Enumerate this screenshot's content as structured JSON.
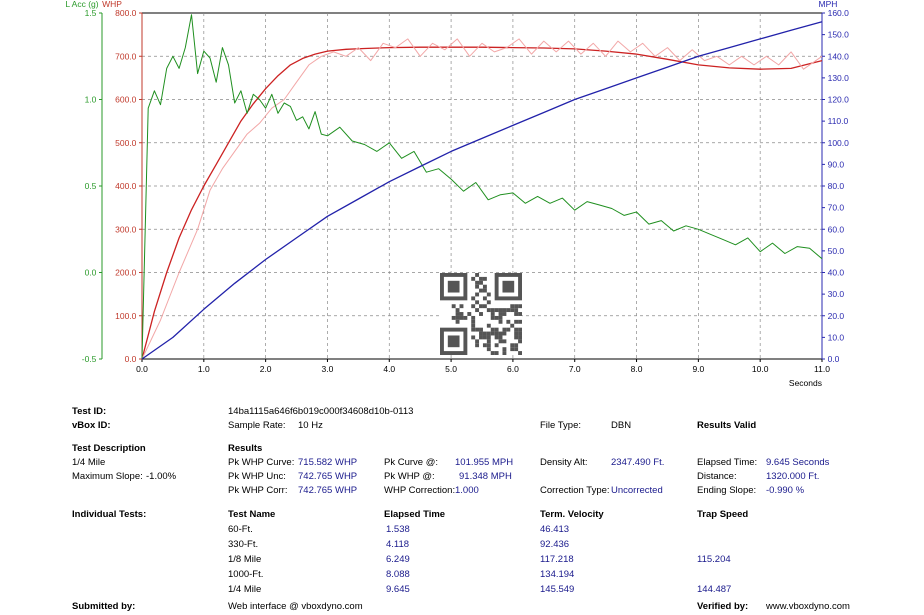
{
  "chart_data": {
    "type": "line",
    "xlabel": "Seconds",
    "xlim": [
      0,
      11
    ],
    "xticks": [
      0,
      1,
      2,
      3,
      4,
      5,
      6,
      7,
      8,
      9,
      10,
      11
    ],
    "xtick_labels": [
      "0.0",
      "1.0",
      "2.0",
      "3.0",
      "4.0",
      "5.0",
      "6.0",
      "7.0",
      "8.0",
      "9.0",
      "10.0",
      "11.0"
    ],
    "axes": {
      "left_outer": {
        "label": "L Acc (g)",
        "color": "#2a9a2a",
        "range": [
          -0.5,
          1.5
        ],
        "ticks": [
          -0.5,
          0.0,
          0.5,
          1.0,
          1.5
        ],
        "tick_labels": [
          "-0.5",
          "0.0",
          "0.5",
          "1.0",
          "1.5"
        ]
      },
      "left_inner": {
        "label": "WHP",
        "color": "#c0392b",
        "range": [
          0,
          800
        ],
        "ticks": [
          0,
          100,
          200,
          300,
          400,
          500,
          600,
          700,
          800
        ],
        "tick_labels": [
          "0.0",
          "100.0",
          "200.0",
          "300.0",
          "400.0",
          "500.0",
          "600.0",
          "700.0",
          "800.0"
        ]
      },
      "right": {
        "label": "MPH",
        "color": "#2a2ab0",
        "range": [
          0,
          160
        ],
        "ticks": [
          0,
          10,
          20,
          30,
          40,
          50,
          60,
          70,
          80,
          90,
          100,
          110,
          120,
          130,
          140,
          150,
          160
        ],
        "tick_labels": [
          "0.0",
          "10.0",
          "20.0",
          "30.0",
          "40.0",
          "50.0",
          "60.0",
          "70.0",
          "80.0",
          "90.0",
          "100.0",
          "110.0",
          "120.0",
          "130.0",
          "140.0",
          "150.0",
          "160.0"
        ]
      }
    },
    "grid": true,
    "series": [
      {
        "axis": "left_inner",
        "color": "#cc2222",
        "width": 1.3,
        "x": [
          0,
          0.2,
          0.4,
          0.6,
          0.8,
          1.0,
          1.2,
          1.4,
          1.6,
          1.8,
          2.0,
          2.2,
          2.4,
          2.6,
          2.8,
          3.0,
          3.3,
          3.6,
          4.0,
          4.5,
          5.0,
          5.5,
          6.0,
          6.5,
          7.0,
          7.5,
          8.0,
          8.5,
          9.0,
          9.5,
          10.0,
          10.5,
          11.0
        ],
        "y": [
          0,
          110,
          200,
          280,
          345,
          400,
          450,
          500,
          550,
          590,
          625,
          655,
          680,
          695,
          705,
          712,
          716,
          718,
          720,
          721,
          721,
          721,
          720,
          719,
          717,
          712,
          705,
          693,
          680,
          673,
          670,
          672,
          690
        ]
      },
      {
        "axis": "left_inner",
        "color": "#f2a7a7",
        "width": 1.0,
        "x": [
          0,
          0.3,
          0.6,
          0.9,
          1.1,
          1.3,
          1.5,
          1.7,
          1.9,
          2.1,
          2.3,
          2.5,
          2.7,
          2.9,
          3.1,
          3.3,
          3.5,
          3.7,
          3.9,
          4.1,
          4.3,
          4.5,
          4.7,
          4.9,
          5.1,
          5.3,
          5.5,
          5.7,
          5.9,
          6.1,
          6.3,
          6.5,
          6.7,
          6.9,
          7.1,
          7.3,
          7.5,
          7.7,
          7.9,
          8.1,
          8.3,
          8.5,
          8.7,
          8.9,
          9.1,
          9.3,
          9.5,
          9.7,
          9.9,
          10.1,
          10.3,
          10.5,
          10.7,
          11.0
        ],
        "y": [
          0,
          90,
          200,
          300,
          390,
          440,
          480,
          520,
          545,
          580,
          600,
          640,
          680,
          700,
          710,
          700,
          720,
          690,
          730,
          720,
          740,
          700,
          730,
          715,
          740,
          700,
          730,
          710,
          720,
          740,
          705,
          735,
          710,
          735,
          705,
          730,
          700,
          735,
          710,
          730,
          700,
          720,
          690,
          715,
          690,
          700,
          680,
          700,
          680,
          700,
          680,
          710,
          670,
          700
        ]
      },
      {
        "axis": "left_outer",
        "color": "#1f8f1f",
        "width": 1.0,
        "x": [
          0,
          0.1,
          0.2,
          0.3,
          0.4,
          0.5,
          0.6,
          0.7,
          0.8,
          0.9,
          1.0,
          1.1,
          1.2,
          1.3,
          1.4,
          1.5,
          1.6,
          1.7,
          1.8,
          1.9,
          2.0,
          2.1,
          2.2,
          2.3,
          2.4,
          2.5,
          2.6,
          2.7,
          2.8,
          2.9,
          3.0,
          3.2,
          3.4,
          3.6,
          3.8,
          4.0,
          4.2,
          4.4,
          4.6,
          4.8,
          5.0,
          5.2,
          5.4,
          5.6,
          5.8,
          6.0,
          6.2,
          6.4,
          6.6,
          6.8,
          7.0,
          7.2,
          7.4,
          7.6,
          7.8,
          8.0,
          8.2,
          8.4,
          8.6,
          8.8,
          9.0,
          9.2,
          9.4,
          9.6,
          9.8,
          10.0,
          10.2,
          10.4,
          10.6,
          10.8,
          11.0
        ],
        "y": [
          -0.5,
          0.95,
          1.05,
          0.97,
          1.18,
          1.25,
          1.18,
          1.3,
          1.49,
          1.15,
          1.28,
          1.24,
          1.1,
          1.3,
          1.2,
          0.98,
          1.05,
          0.92,
          1.03,
          1.0,
          0.95,
          1.03,
          0.92,
          0.98,
          0.96,
          0.88,
          0.9,
          0.83,
          0.93,
          0.8,
          0.79,
          0.84,
          0.76,
          0.74,
          0.7,
          0.75,
          0.66,
          0.7,
          0.58,
          0.6,
          0.54,
          0.47,
          0.52,
          0.42,
          0.45,
          0.46,
          0.4,
          0.44,
          0.4,
          0.43,
          0.36,
          0.41,
          0.39,
          0.37,
          0.33,
          0.35,
          0.28,
          0.3,
          0.24,
          0.27,
          0.25,
          0.22,
          0.19,
          0.16,
          0.2,
          0.12,
          0.17,
          0.11,
          0.15,
          0.14,
          0.08
        ]
      },
      {
        "axis": "right",
        "color": "#2222aa",
        "width": 1.3,
        "x": [
          0,
          0.5,
          1.0,
          1.5,
          2.0,
          2.5,
          3.0,
          3.5,
          4.0,
          4.5,
          5.0,
          5.5,
          6.0,
          6.5,
          7.0,
          7.5,
          8.0,
          8.5,
          9.0,
          9.5,
          10.0,
          10.5,
          11.0
        ],
        "y": [
          0,
          10,
          23,
          35,
          46,
          56,
          66,
          74,
          82,
          89,
          96,
          102,
          108,
          114,
          120,
          125,
          130,
          135,
          140,
          144,
          148,
          152,
          156
        ]
      }
    ]
  },
  "info": {
    "test_id_label": "Test ID:",
    "test_id_value": "14ba1115a646f6b019c000f34608d10b-0113",
    "vbox_id_label": "vBox ID:",
    "sample_rate_label": "Sample Rate:",
    "sample_rate_value": "10 Hz",
    "file_type_label": "File Type:",
    "file_type_value": "DBN",
    "results_valid": "Results Valid",
    "test_description_heading": "Test Description",
    "test_description": "1/4 Mile",
    "max_slope_label": "Maximum Slope:",
    "max_slope_value": "-1.00%",
    "results_heading": "Results",
    "pk_curve_label": "Pk WHP Curve:",
    "pk_curve_value": "715.582 WHP",
    "pk_unc_label": "Pk WHP Unc:",
    "pk_unc_value": "742.765 WHP",
    "pk_corr_label": "Pk WHP Corr:",
    "pk_corr_value": "742.765 WHP",
    "pk_curve_at_label": "Pk Curve @:",
    "pk_curve_at_value": "101.955 MPH",
    "pk_whp_at_label": "Pk WHP @:",
    "pk_whp_at_value": "91.348 MPH",
    "whp_corr_label": "WHP Correction:",
    "whp_corr_value": "1.000",
    "density_alt_label": "Density Alt:",
    "density_alt_value": "2347.490 Ft.",
    "corr_type_label": "Correction Type:",
    "corr_type_value": "Uncorrected",
    "elapsed_label": "Elapsed Time:",
    "elapsed_value": "9.645 Seconds",
    "distance_label": "Distance:",
    "distance_value": "1320.000 Ft.",
    "ending_slope_label": "Ending Slope:",
    "ending_slope_value": "-0.990 %",
    "individual_tests_label": "Individual Tests:",
    "col_test_name": "Test Name",
    "col_elapsed": "Elapsed Time",
    "col_velocity": "Term. Velocity",
    "col_trap": "Trap Speed",
    "tests": [
      {
        "name": "60-Ft.",
        "elapsed": "1.538",
        "velocity": "46.413",
        "trap": ""
      },
      {
        "name": "330-Ft.",
        "elapsed": "4.118",
        "velocity": "92.436",
        "trap": ""
      },
      {
        "name": "1/8 Mile",
        "elapsed": "6.249",
        "velocity": "117.218",
        "trap": "115.204"
      },
      {
        "name": "1000-Ft.",
        "elapsed": "8.088",
        "velocity": "134.194",
        "trap": ""
      },
      {
        "name": "1/4 Mile",
        "elapsed": "9.645",
        "velocity": "145.549",
        "trap": "144.487"
      }
    ],
    "submitted_by_label": "Submitted by:",
    "submitted_by_value": "Web interface @ vboxdyno.com",
    "verified_by_label": "Verified by:",
    "verified_by_value": "www.vboxdyno.com"
  }
}
